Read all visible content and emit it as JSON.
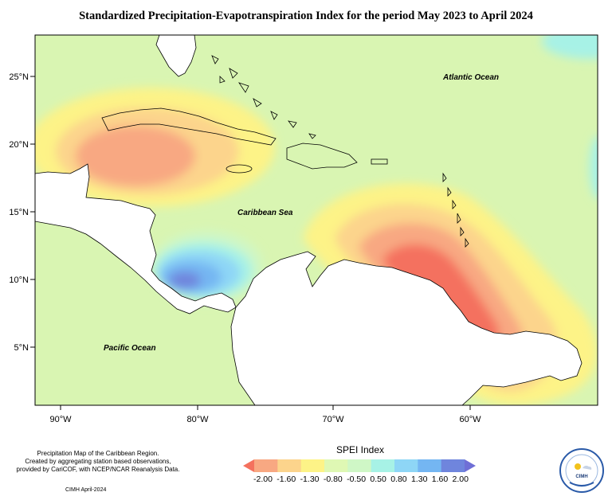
{
  "title": "Standardized Precipitation-Evapotranspiration Index for the period May 2023 to April 2024",
  "map": {
    "lat_labels": [
      "25°N",
      "20°N",
      "15°N",
      "10°N",
      "5°N"
    ],
    "lon_labels": [
      "90°W",
      "80°W",
      "70°W",
      "60°W"
    ],
    "ocean_labels": {
      "atlantic": "Atlantic Ocean",
      "caribbean": "Caribbean Sea",
      "pacific": "Pacific Ocean"
    }
  },
  "legend": {
    "title": "SPEI Index",
    "tick_labels": [
      "-2.00",
      "-1.60",
      "-1.30",
      "-0.80",
      "-0.50",
      "0.50",
      "0.80",
      "1.30",
      "1.60",
      "2.00"
    ],
    "colors": [
      "#f4715e",
      "#f8a882",
      "#fcd48c",
      "#fdf387",
      "#dff8b4",
      "#cff7c6",
      "#a7f2e6",
      "#8ed6f6",
      "#74b6f2",
      "#6f85dd",
      "#6f6fd6"
    ]
  },
  "notes": {
    "line1": "Precipitation Map of the Caribbean Region.",
    "line2": "Created by aggregating station based observations,",
    "line3": "provided by CariCOF, with NCEP/NCAR Reanalysis Data.",
    "credit": "CIMH April-2024",
    "logo_text": "CIMH"
  }
}
